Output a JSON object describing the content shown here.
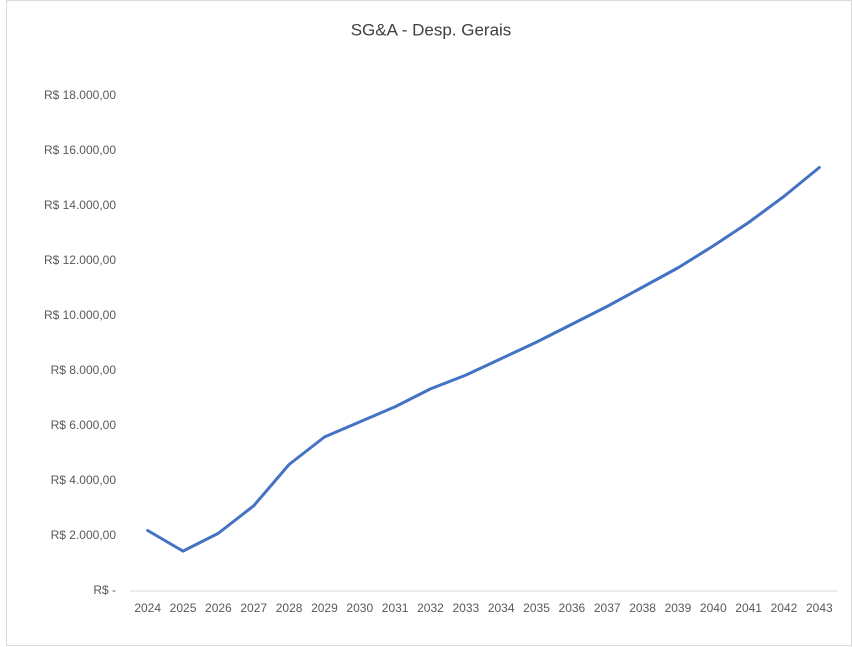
{
  "chart_data": {
    "type": "line",
    "title": "SG&A - Desp. Gerais",
    "categories": [
      "2024",
      "2025",
      "2026",
      "2027",
      "2028",
      "2029",
      "2030",
      "2031",
      "2032",
      "2033",
      "2034",
      "2035",
      "2036",
      "2037",
      "2038",
      "2039",
      "2040",
      "2041",
      "2042",
      "2043"
    ],
    "series": [
      {
        "name": "SG&A - Desp. Gerais",
        "color": "#4472c4",
        "values": [
          2200,
          1450,
          2100,
          3100,
          4600,
          5600,
          6150,
          6700,
          7350,
          7850,
          8450,
          9050,
          9700,
          10350,
          11050,
          11750,
          12550,
          13400,
          14350,
          15400
        ]
      }
    ],
    "ylim": [
      0,
      18000
    ],
    "yticks": [
      {
        "value": 0,
        "label": "R$ -"
      },
      {
        "value": 2000,
        "label": "R$ 2.000,00"
      },
      {
        "value": 4000,
        "label": "R$ 4.000,00"
      },
      {
        "value": 6000,
        "label": "R$ 6.000,00"
      },
      {
        "value": 8000,
        "label": "R$ 8.000,00"
      },
      {
        "value": 10000,
        "label": "R$ 10.000,00"
      },
      {
        "value": 12000,
        "label": "R$ 12.000,00"
      },
      {
        "value": 14000,
        "label": "R$ 14.000,00"
      },
      {
        "value": 16000,
        "label": "R$ 16.000,00"
      },
      {
        "value": 18000,
        "label": "R$ 18.000,00"
      }
    ],
    "grid": false
  }
}
